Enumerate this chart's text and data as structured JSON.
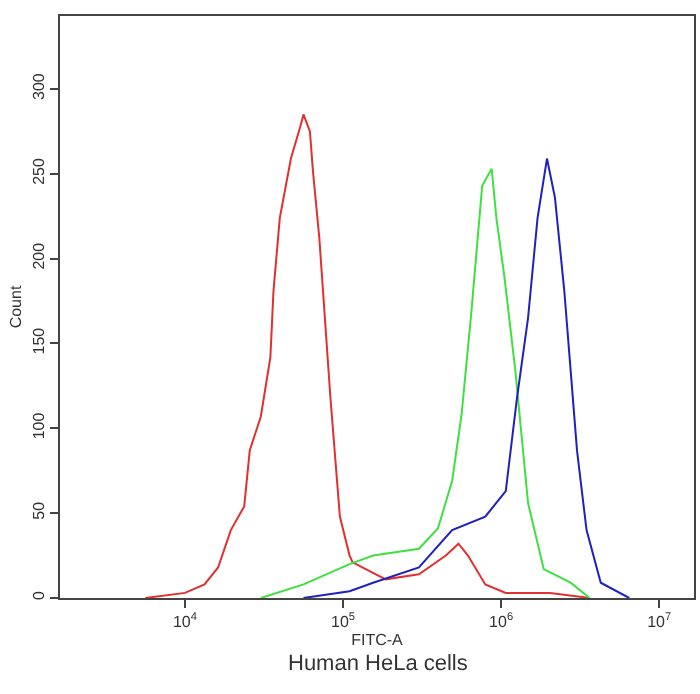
{
  "chart_data": {
    "type": "line",
    "xlabel": "FITC-A",
    "ylabel": "Count",
    "annotations": [
      "Human HeLa cells"
    ],
    "log": "x",
    "marker": "none",
    "line_style": "solid",
    "xlim": [
      1620,
      16600000
    ],
    "xticks": [
      {
        "value": 10000,
        "label": "10$^{4}$"
      },
      {
        "value": 100000,
        "label": "10$^{5}$"
      },
      {
        "value": 1000000,
        "label": "10$^{6}$"
      },
      {
        "value": 10000000,
        "label": "10$^{7}$"
      }
    ],
    "ylim": [
      0,
      343
    ],
    "yticks": [
      0,
      50,
      100,
      150,
      200,
      250,
      300
    ],
    "series": [
      {
        "color": "#e03030",
        "x": [
          5620,
          10000,
          13300,
          16200,
          19500,
          23700,
          25700,
          30200,
          34700,
          36300,
          39800,
          46800,
          53700,
          56200,
          61700,
          64600,
          70800,
          83200,
          95500,
          110000,
          115000,
          186000,
          302000,
          447000,
          537000,
          617000,
          794000,
          1070000,
          2040000,
          3630000
        ],
        "values": [
          0,
          3,
          8,
          18,
          40,
          54,
          87,
          107,
          142,
          181,
          224,
          259,
          278,
          285,
          275,
          251,
          212,
          118,
          48,
          25,
          21,
          11,
          14,
          25,
          32,
          25,
          8,
          3,
          3,
          0
        ]
      },
      {
        "color": "#40e040",
        "x": [
          30200,
          56200,
          110000,
          155000,
          302000,
          398000,
          490000,
          562000,
          646000,
          759000,
          871000,
          933000,
          1050000,
          1230000,
          1480000,
          1860000,
          2750000,
          3630000
        ],
        "values": [
          0,
          8,
          20,
          25,
          29,
          41,
          69,
          108,
          167,
          243,
          253,
          224,
          189,
          134,
          56,
          17,
          9,
          0
        ]
      },
      {
        "color": "#2020c0",
        "x": [
          56200,
          110000,
          155000,
          302000,
          490000,
          794000,
          1070000,
          1260000,
          1480000,
          1700000,
          1950000,
          2190000,
          2510000,
          3020000,
          3470000,
          4270000,
          6460000
        ],
        "values": [
          0,
          4,
          9,
          18,
          40,
          48,
          63,
          118,
          165,
          224,
          259,
          236,
          181,
          87,
          40,
          9,
          0
        ]
      }
    ]
  }
}
